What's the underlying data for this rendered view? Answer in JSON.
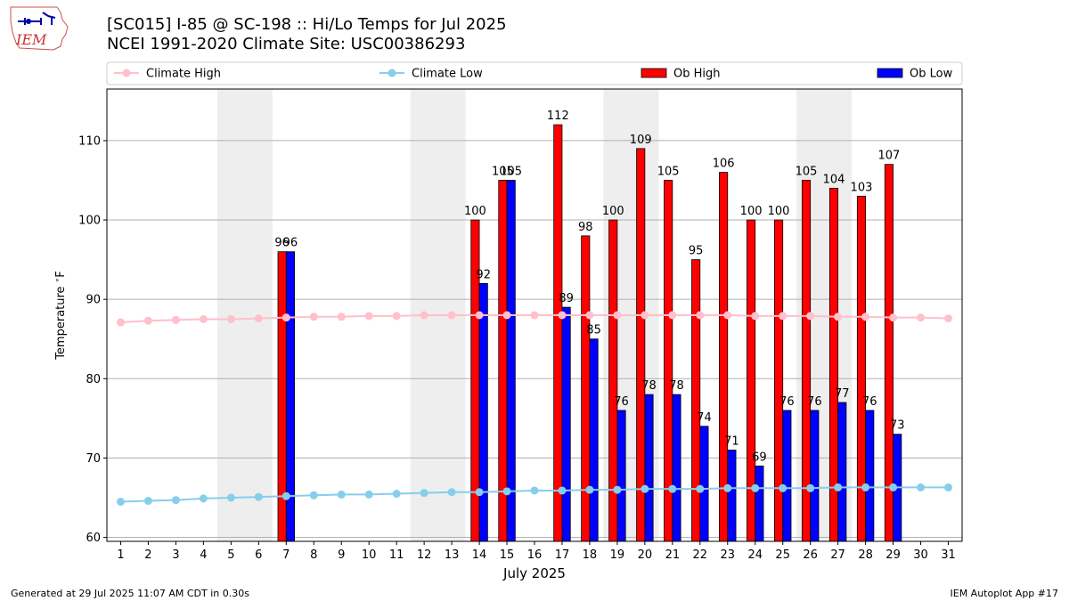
{
  "header": {
    "title": "[SC015] I-85 @ SC-198  :: Hi/Lo Temps for Jul 2025",
    "subtitle": "NCEI 1991-2020 Climate Site: USC00386293"
  },
  "logo": {
    "text": "IEM"
  },
  "footer": {
    "left": "Generated at 29 Jul 2025 11:07 AM CDT in 0.30s",
    "right": "IEM Autoplot App #17"
  },
  "colors": {
    "ob_high": "#ff0000",
    "ob_low": "#0000ff",
    "climate_high": "#ffc0cb",
    "climate_low": "#87ceeb",
    "weekend_band": "#eeeeee",
    "grid": "#b0b0b0"
  },
  "chart_data": {
    "type": "bar",
    "xlabel": "July 2025",
    "ylabel": "Temperature $^\\circ$F",
    "xlim": [
      0.5,
      31.5
    ],
    "ylim": [
      59.5,
      116.5
    ],
    "x_ticks": [
      1,
      2,
      3,
      4,
      5,
      6,
      7,
      8,
      9,
      10,
      11,
      12,
      13,
      14,
      15,
      16,
      17,
      18,
      19,
      20,
      21,
      22,
      23,
      24,
      25,
      26,
      27,
      28,
      29,
      30,
      31
    ],
    "y_ticks": [
      60,
      70,
      80,
      90,
      100,
      110
    ],
    "grid": "y",
    "legend_position": "top",
    "shaded_days": [
      [
        5,
        6
      ],
      [
        12,
        13
      ],
      [
        19,
        20
      ],
      [
        26,
        27
      ]
    ],
    "series": [
      {
        "name": "Climate High",
        "kind": "line",
        "days": [
          1,
          2,
          3,
          4,
          5,
          6,
          7,
          8,
          9,
          10,
          11,
          12,
          13,
          14,
          15,
          16,
          17,
          18,
          19,
          20,
          21,
          22,
          23,
          24,
          25,
          26,
          27,
          28,
          29,
          30,
          31
        ],
        "values": [
          87.1,
          87.3,
          87.4,
          87.5,
          87.5,
          87.6,
          87.7,
          87.8,
          87.8,
          87.9,
          87.9,
          88.0,
          88.0,
          88.0,
          88.0,
          88.0,
          88.0,
          88.0,
          88.0,
          88.0,
          88.0,
          88.0,
          88.0,
          87.9,
          87.9,
          87.9,
          87.8,
          87.8,
          87.7,
          87.7,
          87.6
        ]
      },
      {
        "name": "Climate Low",
        "kind": "line",
        "days": [
          1,
          2,
          3,
          4,
          5,
          6,
          7,
          8,
          9,
          10,
          11,
          12,
          13,
          14,
          15,
          16,
          17,
          18,
          19,
          20,
          21,
          22,
          23,
          24,
          25,
          26,
          27,
          28,
          29,
          30,
          31
        ],
        "values": [
          64.5,
          64.6,
          64.7,
          64.9,
          65.0,
          65.1,
          65.2,
          65.3,
          65.4,
          65.4,
          65.5,
          65.6,
          65.7,
          65.7,
          65.8,
          65.9,
          65.9,
          66.0,
          66.0,
          66.1,
          66.1,
          66.1,
          66.2,
          66.2,
          66.2,
          66.2,
          66.3,
          66.3,
          66.3,
          66.3,
          66.3
        ]
      },
      {
        "name": "Ob High",
        "kind": "bar",
        "days": [
          7,
          14,
          15,
          17,
          18,
          19,
          20,
          21,
          22,
          23,
          24,
          25,
          26,
          27,
          28,
          29
        ],
        "values": [
          96,
          100,
          105,
          112,
          98,
          100,
          109,
          105,
          95,
          106,
          100,
          100,
          105,
          104,
          103,
          107
        ]
      },
      {
        "name": "Ob Low",
        "kind": "bar",
        "days": [
          7,
          14,
          15,
          17,
          18,
          19,
          20,
          21,
          22,
          23,
          24,
          25,
          26,
          27,
          28,
          29
        ],
        "values": [
          96,
          92,
          105,
          89,
          85,
          76,
          78,
          78,
          74,
          71,
          69,
          76,
          76,
          77,
          76,
          73
        ]
      }
    ]
  }
}
